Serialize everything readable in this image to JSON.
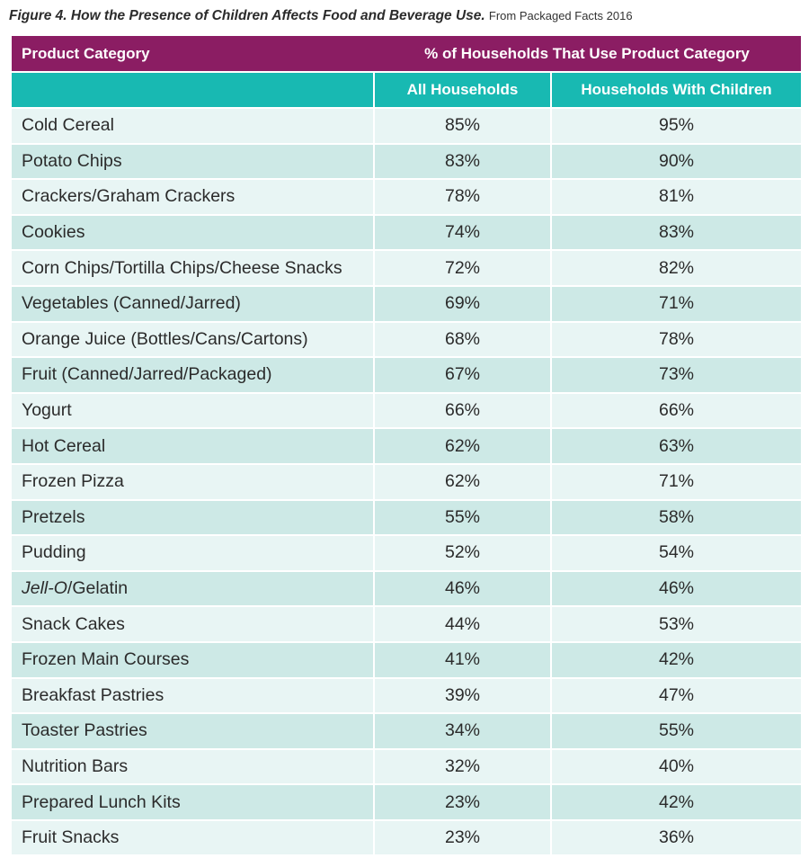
{
  "caption": {
    "title": "Figure 4.  How the Presence of Children Affects Food and Beverage Use.",
    "source": "From Packaged Facts 2016"
  },
  "header": {
    "category_label": "Product Category",
    "group_label": "% of Households That Use Product Category",
    "col_all": "All Households",
    "col_children": "Households With Children"
  },
  "colors": {
    "header_top": "#8b1d63",
    "header_sub": "#18b9b2",
    "row_light": "#e8f5f4",
    "row_dark": "#cde9e6"
  },
  "chart_data": {
    "type": "table",
    "columns": [
      "Product Category",
      "All Households",
      "Households With Children"
    ],
    "rows": [
      {
        "category": "Cold Cereal",
        "all": "85%",
        "children": "95%"
      },
      {
        "category": "Potato Chips",
        "all": "83%",
        "children": "90%"
      },
      {
        "category": "Crackers/Graham Crackers",
        "all": "78%",
        "children": "81%"
      },
      {
        "category": "Cookies",
        "all": "74%",
        "children": "83%"
      },
      {
        "category": "Corn Chips/Tortilla Chips/Cheese Snacks",
        "all": "72%",
        "children": "82%"
      },
      {
        "category": "Vegetables (Canned/Jarred)",
        "all": "69%",
        "children": "71%"
      },
      {
        "category": "Orange Juice (Bottles/Cans/Cartons)",
        "all": "68%",
        "children": "78%"
      },
      {
        "category": "Fruit (Canned/Jarred/Packaged)",
        "all": "67%",
        "children": "73%"
      },
      {
        "category": "Yogurt",
        "all": "66%",
        "children": "66%"
      },
      {
        "category": "Hot Cereal",
        "all": "62%",
        "children": "63%"
      },
      {
        "category": "Frozen Pizza",
        "all": "62%",
        "children": "71%"
      },
      {
        "category": "Pretzels",
        "all": "55%",
        "children": "58%"
      },
      {
        "category": "Pudding",
        "all": "52%",
        "children": "54%"
      },
      {
        "category": "Jell-O",
        "category_suffix": "/Gelatin",
        "all": "46%",
        "children": "46%"
      },
      {
        "category": "Snack Cakes",
        "all": "44%",
        "children": "53%"
      },
      {
        "category": "Frozen Main Courses",
        "all": "41%",
        "children": "42%"
      },
      {
        "category": "Breakfast Pastries",
        "all": "39%",
        "children": "47%"
      },
      {
        "category": "Toaster Pastries",
        "all": "34%",
        "children": "55%"
      },
      {
        "category": "Nutrition Bars",
        "all": "32%",
        "children": "40%"
      },
      {
        "category": "Prepared Lunch Kits",
        "all": "23%",
        "children": "42%"
      },
      {
        "category": "Fruit Snacks",
        "all": "23%",
        "children": "36%"
      }
    ]
  }
}
